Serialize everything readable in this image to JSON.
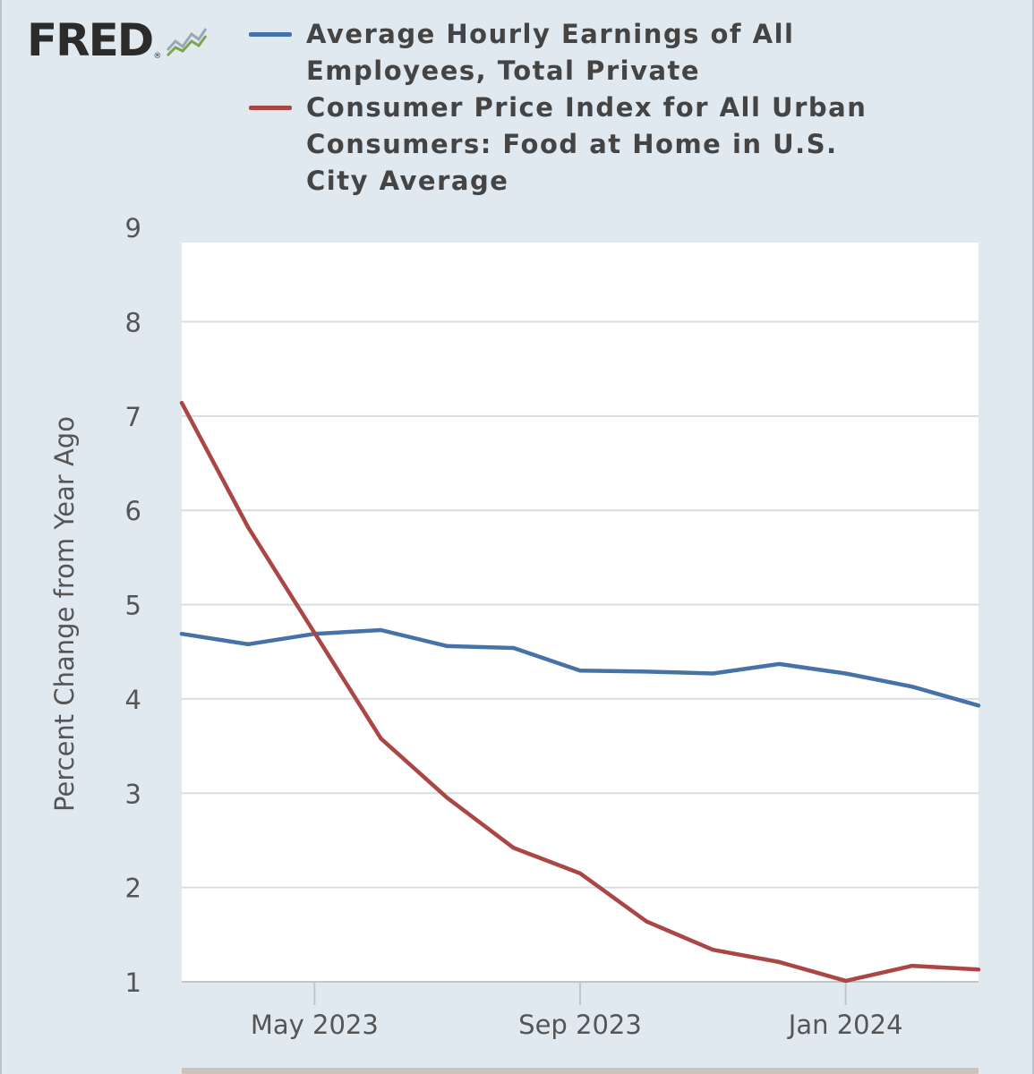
{
  "header": {
    "logo_text": "FRED",
    "logo_reg": "®",
    "logo_icon": "chart-line-icon"
  },
  "colors": {
    "background": "#e1e9f0",
    "plot_bg": "#ffffff",
    "grid": "#d9dde2",
    "earnings": "#4572a7",
    "cpi": "#aa4643",
    "text": "#444444"
  },
  "chart_data": {
    "type": "line",
    "title": "",
    "xlabel": "",
    "ylabel": "Percent Change from Year Ago",
    "ylim": [
      1,
      9
    ],
    "yticks": [
      "1",
      "2",
      "3",
      "4",
      "5",
      "6",
      "7",
      "8",
      "9"
    ],
    "grid": true,
    "x": [
      "2023-03",
      "2023-04",
      "2023-05",
      "2023-06",
      "2023-07",
      "2023-08",
      "2023-09",
      "2023-10",
      "2023-11",
      "2023-12",
      "2024-01",
      "2024-02",
      "2024-03"
    ],
    "xtick_labels": [
      {
        "label": "May 2023",
        "at": "2023-05"
      },
      {
        "label": "Sep 2023",
        "at": "2023-09"
      },
      {
        "label": "Jan 2024",
        "at": "2024-01"
      }
    ],
    "series": [
      {
        "name": "Average Hourly Earnings of All Employees, Total Private",
        "color": "#4572a7",
        "values": [
          4.69,
          4.58,
          4.69,
          4.73,
          4.56,
          4.54,
          4.3,
          4.29,
          4.27,
          4.37,
          4.27,
          4.13,
          3.93
        ]
      },
      {
        "name": "Consumer Price Index for All Urban Consumers: Food at Home in U.S. City Average",
        "color": "#aa4643",
        "values": [
          7.14,
          5.82,
          4.7,
          3.58,
          2.95,
          2.42,
          2.15,
          1.64,
          1.34,
          1.21,
          1.01,
          1.17,
          1.13
        ]
      }
    ]
  }
}
